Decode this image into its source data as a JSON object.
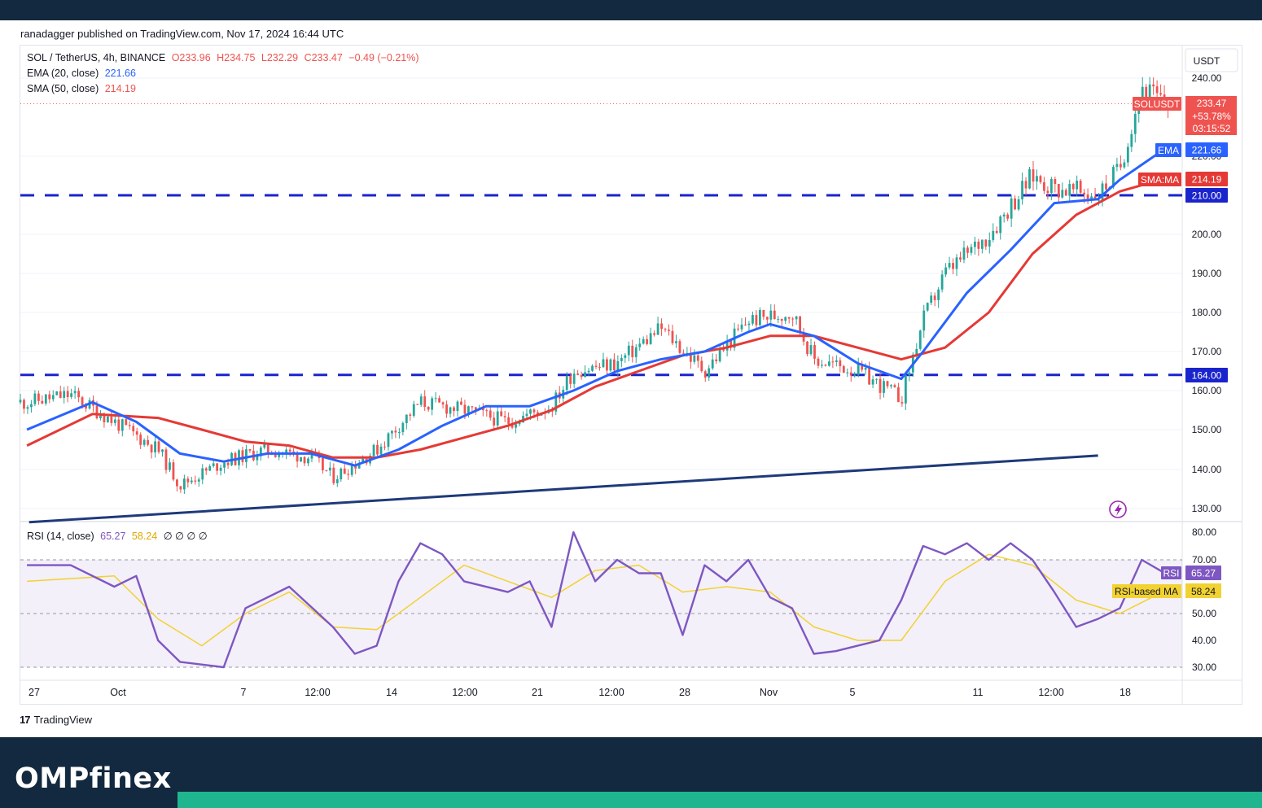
{
  "header": {
    "published": "ranadagger published on TradingView.com, Nov 17, 2024 16:44 UTC"
  },
  "legend": {
    "symbol": "SOL / TetherUS, 4h, BINANCE",
    "ohlc": {
      "o": "O233.96",
      "h": "H234.75",
      "l": "L232.29",
      "c": "C233.47",
      "change": "−0.49 (−0.21%)"
    },
    "ema_label": "EMA (20, close)",
    "ema_value": "221.66",
    "sma_label": "SMA (50, close)",
    "sma_value": "214.19",
    "rsi_label": "RSI (14, close)",
    "rsi_value": "65.27",
    "rsi_ma_value": "58.24",
    "rsi_extra": "∅ ∅ ∅ ∅"
  },
  "price_axis": {
    "currency": "USDT",
    "ticks": [
      "240.00",
      "220.00",
      "200.00",
      "190.00",
      "180.00",
      "170.00",
      "160.00",
      "150.00",
      "140.00",
      "130.00"
    ],
    "tags": {
      "symbol_name": "SOLUSDT",
      "price": "233.47",
      "change_pct": "+53.78%",
      "countdown": "03:15:52",
      "ema_name": "EMA",
      "ema": "221.66",
      "sma_name": "SMA:MA",
      "sma": "214.19",
      "level_210": "210.00",
      "level_164": "164.00"
    }
  },
  "rsi_axis": {
    "ticks": [
      "80.00",
      "70.00",
      "50.00",
      "40.00",
      "30.00"
    ],
    "rsi_name": "RSI",
    "rsi": "65.27",
    "ma_name": "RSI-based MA",
    "ma": "58.24"
  },
  "time_axis": [
    "27",
    "Oct",
    "7",
    "12:00",
    "14",
    "12:00",
    "21",
    "12:00",
    "28",
    "Nov",
    "5",
    "11",
    "12:00",
    "18"
  ],
  "brand": {
    "tradingview": "TradingView",
    "site": "OMPfinex"
  },
  "colors": {
    "ema": "#2962ff",
    "sma": "#e53935",
    "level": "#1a24cc",
    "trend": "#1f3a7a",
    "rsi": "#7e57c2",
    "rsi_ma": "#f2d232",
    "up": "#26a69a",
    "down": "#ef5350"
  },
  "chart_data": {
    "type": "candlestick",
    "symbol": "SOL / TetherUS",
    "timeframe": "4h",
    "ylim": [
      128,
      242
    ],
    "levels": [
      210,
      164
    ],
    "trendline": {
      "start": [
        "Sep 26",
        126.5
      ],
      "end": [
        "Nov 14",
        143.5
      ]
    },
    "price_path": {
      "x": [
        "Sep 26",
        "Sep 28",
        "Sep 30",
        "Oct 2",
        "Oct 3",
        "Oct 5",
        "Oct 7",
        "Oct 9",
        "Oct 10",
        "Oct 12",
        "Oct 14",
        "Oct 16",
        "Oct 18",
        "Oct 20",
        "Oct 21",
        "Oct 23",
        "Oct 25",
        "Oct 27",
        "Oct 29",
        "Oct 31",
        "Nov 1",
        "Nov 3",
        "Nov 5",
        "Nov 6",
        "Nov 7",
        "Nov 9",
        "Nov 11",
        "Nov 12",
        "Nov 14",
        "Nov 15",
        "Nov 16",
        "Nov 17"
      ],
      "close": [
        157,
        159,
        152,
        145,
        136,
        142,
        145,
        143,
        138,
        145,
        157,
        155,
        152,
        156,
        165,
        167,
        176,
        165,
        178,
        180,
        168,
        165,
        158,
        178,
        190,
        200,
        215,
        212,
        210,
        217,
        238,
        233.47
      ]
    },
    "ema20": {
      "x": [
        "Sep 26",
        "Sep 29",
        "Oct 1",
        "Oct 3",
        "Oct 5",
        "Oct 7",
        "Oct 9",
        "Oct 11",
        "Oct 13",
        "Oct 15",
        "Oct 17",
        "Oct 19",
        "Oct 21",
        "Oct 23",
        "Oct 25",
        "Oct 27",
        "Oct 29",
        "Oct 30",
        "Nov 1",
        "Nov 3",
        "Nov 5",
        "Nov 6",
        "Nov 8",
        "Nov 10",
        "Nov 12",
        "Nov 14",
        "Nov 15",
        "Nov 17"
      ],
      "y": [
        150,
        157,
        152,
        144,
        142,
        144,
        144,
        141,
        145,
        151,
        156,
        156,
        160,
        165,
        168,
        170,
        175,
        177,
        174,
        167,
        163,
        170,
        185,
        196,
        208,
        209,
        214,
        221.66
      ]
    },
    "sma50": {
      "x": [
        "Sep 26",
        "Sep 29",
        "Oct 2",
        "Oct 4",
        "Oct 6",
        "Oct 8",
        "Oct 10",
        "Oct 12",
        "Oct 14",
        "Oct 16",
        "Oct 18",
        "Oct 20",
        "Oct 22",
        "Oct 24",
        "Oct 26",
        "Oct 28",
        "Oct 30",
        "Nov 1",
        "Nov 3",
        "Nov 5",
        "Nov 7",
        "Nov 9",
        "Nov 11",
        "Nov 13",
        "Nov 15",
        "Nov 17"
      ],
      "y": [
        146,
        154,
        153,
        150,
        147,
        146,
        143,
        143,
        145,
        148,
        151,
        155,
        161,
        165,
        169,
        171,
        174,
        174,
        171,
        168,
        171,
        180,
        195,
        205,
        211,
        214.19
      ]
    },
    "rsi": {
      "ylim": [
        27,
        82
      ],
      "overbought": 70,
      "oversold": 30,
      "mid": 50,
      "x": [
        "Sep 26",
        "Sep 28",
        "Sep 30",
        "Oct 1",
        "Oct 2",
        "Oct 3",
        "Oct 5",
        "Oct 6",
        "Oct 8",
        "Oct 10",
        "Oct 11",
        "Oct 12",
        "Oct 13",
        "Oct 14",
        "Oct 15",
        "Oct 16",
        "Oct 18",
        "Oct 19",
        "Oct 20",
        "Oct 21",
        "Oct 22",
        "Oct 23",
        "Oct 24",
        "Oct 25",
        "Oct 26",
        "Oct 27",
        "Oct 28",
        "Oct 29",
        "Oct 30",
        "Oct 31",
        "Nov 1",
        "Nov 2",
        "Nov 3",
        "Nov 4",
        "Nov 5",
        "Nov 6",
        "Nov 7",
        "Nov 8",
        "Nov 9",
        "Nov 10",
        "Nov 11",
        "Nov 12",
        "Nov 13",
        "Nov 14",
        "Nov 15",
        "Nov 16",
        "Nov 17"
      ],
      "y": [
        68,
        68,
        60,
        64,
        40,
        32,
        30,
        52,
        60,
        45,
        35,
        38,
        62,
        76,
        72,
        62,
        58,
        62,
        45,
        80,
        62,
        70,
        65,
        65,
        42,
        68,
        62,
        70,
        56,
        52,
        35,
        36,
        38,
        40,
        55,
        75,
        72,
        76,
        70,
        76,
        70,
        58,
        45,
        48,
        52,
        70,
        65.27
      ]
    },
    "rsi_ma": {
      "x": [
        "Sep 26",
        "Sep 30",
        "Oct 2",
        "Oct 4",
        "Oct 6",
        "Oct 8",
        "Oct 10",
        "Oct 12",
        "Oct 14",
        "Oct 16",
        "Oct 18",
        "Oct 20",
        "Oct 22",
        "Oct 24",
        "Oct 26",
        "Oct 28",
        "Oct 30",
        "Nov 1",
        "Nov 3",
        "Nov 5",
        "Nov 7",
        "Nov 9",
        "Nov 11",
        "Nov 13",
        "Nov 15",
        "Nov 17"
      ],
      "y": [
        62,
        64,
        48,
        38,
        50,
        58,
        45,
        44,
        56,
        68,
        62,
        56,
        66,
        68,
        58,
        60,
        58,
        45,
        40,
        40,
        62,
        72,
        68,
        55,
        50,
        58.24
      ]
    }
  }
}
